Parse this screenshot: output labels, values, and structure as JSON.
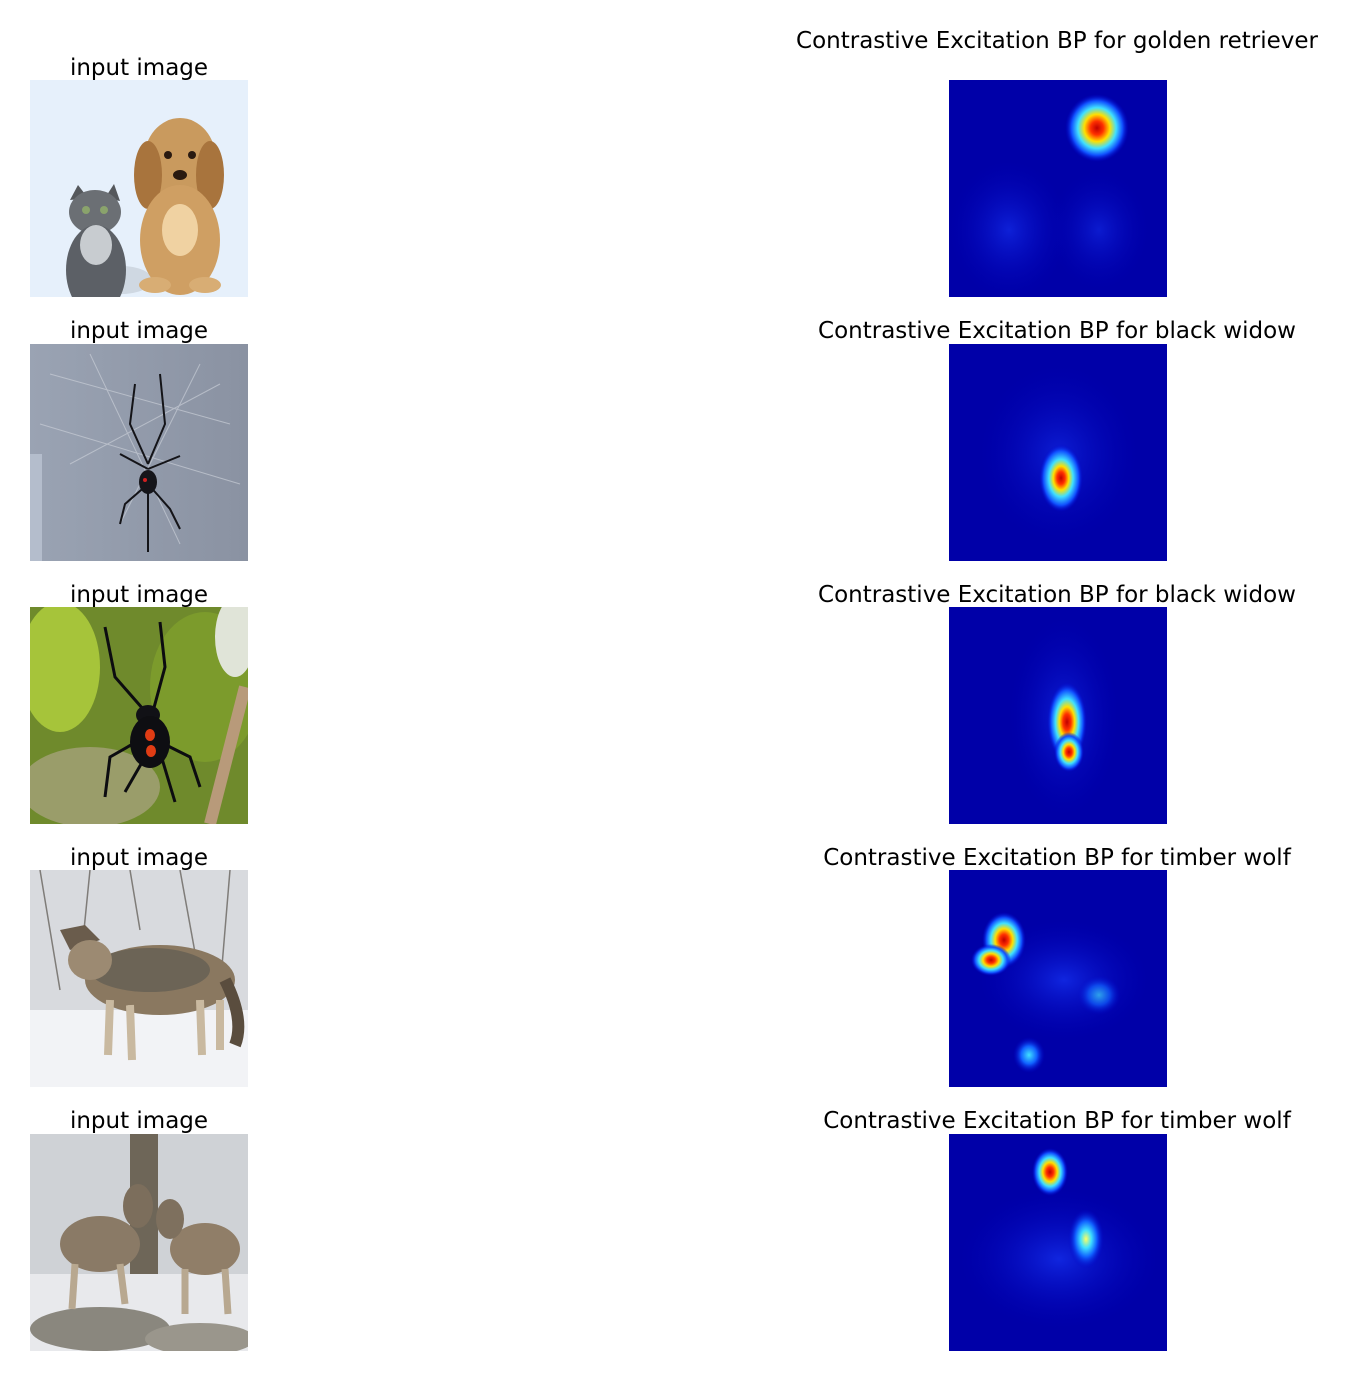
{
  "rows": [
    {
      "input_title": "input image",
      "input_picture": "kitten and golden puppy sitting side by side on light blue background",
      "heatmap_title": "Contrastive Excitation BP for golden retriever"
    },
    {
      "input_title": "input image",
      "input_picture": "black widow spider hanging in a web against grey background",
      "heatmap_title": "Contrastive Excitation BP for black widow"
    },
    {
      "input_title": "input image",
      "input_picture": "black widow spider with red markings on a branch among green leaves",
      "heatmap_title": "Contrastive Excitation BP for black widow"
    },
    {
      "input_title": "input image",
      "input_picture": "grey wolf standing in snowy forest",
      "heatmap_title": "Contrastive Excitation BP for timber wolf"
    },
    {
      "input_title": "input image",
      "input_picture": "two wolves standing on snowy rocks",
      "heatmap_title": "Contrastive Excitation BP for timber wolf"
    }
  ],
  "colors": {
    "heatmap_low": "#00008f",
    "heatmap_mid": "#1e5cff",
    "heatmap_high": "#ff2a00",
    "heatmap_peak": "#c00000"
  }
}
